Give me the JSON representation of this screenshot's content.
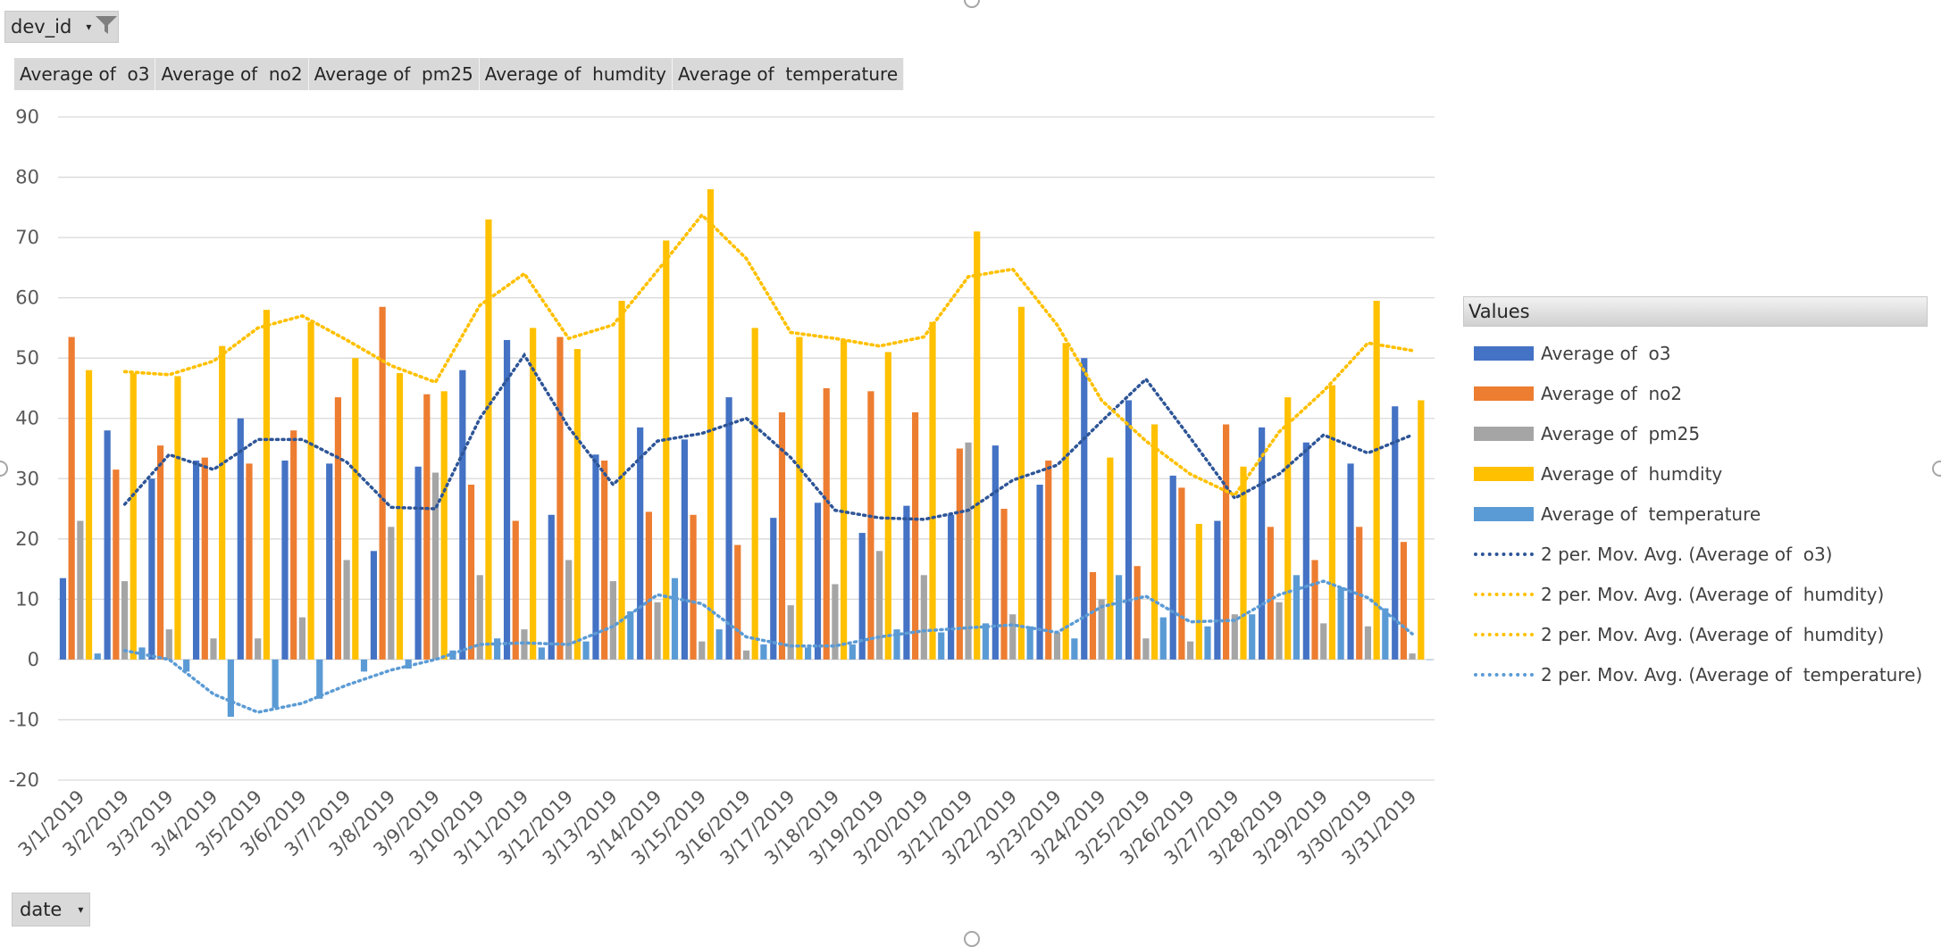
{
  "filter_field": {
    "label": "dev_id",
    "arrow": "▾",
    "icon": "funnel-icon"
  },
  "axis_field": {
    "label": "date",
    "arrow": "▾"
  },
  "value_fields": [
    "Average of  o3",
    "Average of  no2",
    "Average of  pm25",
    "Average of  humdity",
    "Average of  temperature"
  ],
  "legend": {
    "title": "Values"
  },
  "chart_data": {
    "type": "bar",
    "categories": [
      "3/1/2019",
      "3/2/2019",
      "3/3/2019",
      "3/4/2019",
      "3/5/2019",
      "3/6/2019",
      "3/7/2019",
      "3/8/2019",
      "3/9/2019",
      "3/10/2019",
      "3/11/2019",
      "3/12/2019",
      "3/13/2019",
      "3/14/2019",
      "3/15/2019",
      "3/16/2019",
      "3/17/2019",
      "3/18/2019",
      "3/19/2019",
      "3/20/2019",
      "3/21/2019",
      "3/22/2019",
      "3/23/2019",
      "3/24/2019",
      "3/25/2019",
      "3/26/2019",
      "3/27/2019",
      "3/28/2019",
      "3/29/2019",
      "3/30/2019",
      "3/31/2019"
    ],
    "ylim": [
      -20,
      90
    ],
    "yticks": [
      -20,
      -10,
      0,
      10,
      20,
      30,
      40,
      50,
      60,
      70,
      80,
      90
    ],
    "grid": true,
    "legend_position": "right",
    "series": [
      {
        "name": "Average of  o3",
        "color": "#4472c4",
        "values": [
          13.5,
          38,
          30,
          33,
          40,
          33,
          32.5,
          18,
          32,
          48,
          53,
          24,
          34,
          38.5,
          36.5,
          43.5,
          23.5,
          26,
          21,
          25.5,
          24,
          35.5,
          29,
          50,
          43,
          30.5,
          23,
          38.5,
          36,
          32.5,
          42
        ]
      },
      {
        "name": "Average of  no2",
        "color": "#ed7d31",
        "values": [
          53.5,
          31.5,
          35.5,
          33.5,
          32.5,
          38,
          43.5,
          58.5,
          44,
          29,
          23,
          53.5,
          33,
          24.5,
          24,
          19,
          41,
          45,
          44.5,
          41,
          35,
          25,
          33,
          14.5,
          15.5,
          28.5,
          39,
          22,
          16.5,
          22,
          19.5
        ]
      },
      {
        "name": "Average of  pm25",
        "color": "#a5a5a5",
        "values": [
          23,
          13,
          5,
          3.5,
          3.5,
          7,
          16.5,
          22,
          31,
          14,
          5,
          16.5,
          13,
          9.5,
          3,
          1.5,
          9,
          12.5,
          18,
          14,
          36,
          7.5,
          4.5,
          10,
          3.5,
          3,
          7.5,
          9.5,
          6,
          5.5,
          1
        ]
      },
      {
        "name": "Average of  humdity",
        "color": "#ffc000",
        "values": [
          48,
          47.5,
          47,
          52,
          58,
          56,
          50,
          47.5,
          44.5,
          73,
          55,
          51.5,
          59.5,
          69.5,
          78,
          55,
          53.5,
          53,
          51,
          56,
          71,
          58.5,
          52.5,
          33.5,
          39,
          22.5,
          32,
          43.5,
          45.5,
          59.5,
          43
        ]
      },
      {
        "name": "Average of  temperature",
        "color": "#5b9bd5",
        "values": [
          1,
          2,
          -2,
          -9.5,
          -8,
          -6.5,
          -2,
          -1.5,
          1.5,
          3.5,
          2,
          3,
          8,
          13.5,
          5,
          2.5,
          2,
          2.5,
          5,
          4.5,
          6,
          5.5,
          3.5,
          14,
          7,
          5.5,
          7.5,
          14,
          12,
          8.5,
          0
        ]
      }
    ],
    "trendlines": [
      {
        "name": "2 per. Mov. Avg. (Average of  o3)",
        "source": "Average of  o3",
        "period": 2,
        "color": "#2e5597"
      },
      {
        "name": "2 per. Mov. Avg. (Average of  humdity)",
        "source": "Average of  humdity",
        "period": 2,
        "color": "#ffc000"
      },
      {
        "name": "2 per. Mov. Avg. (Average of  humdity)",
        "source": "Average of  humdity",
        "period": 2,
        "color": "#ffc000"
      },
      {
        "name": "2 per. Mov. Avg. (Average of  temperature)",
        "source": "Average of  temperature",
        "period": 2,
        "color": "#5b9bd5"
      }
    ]
  }
}
